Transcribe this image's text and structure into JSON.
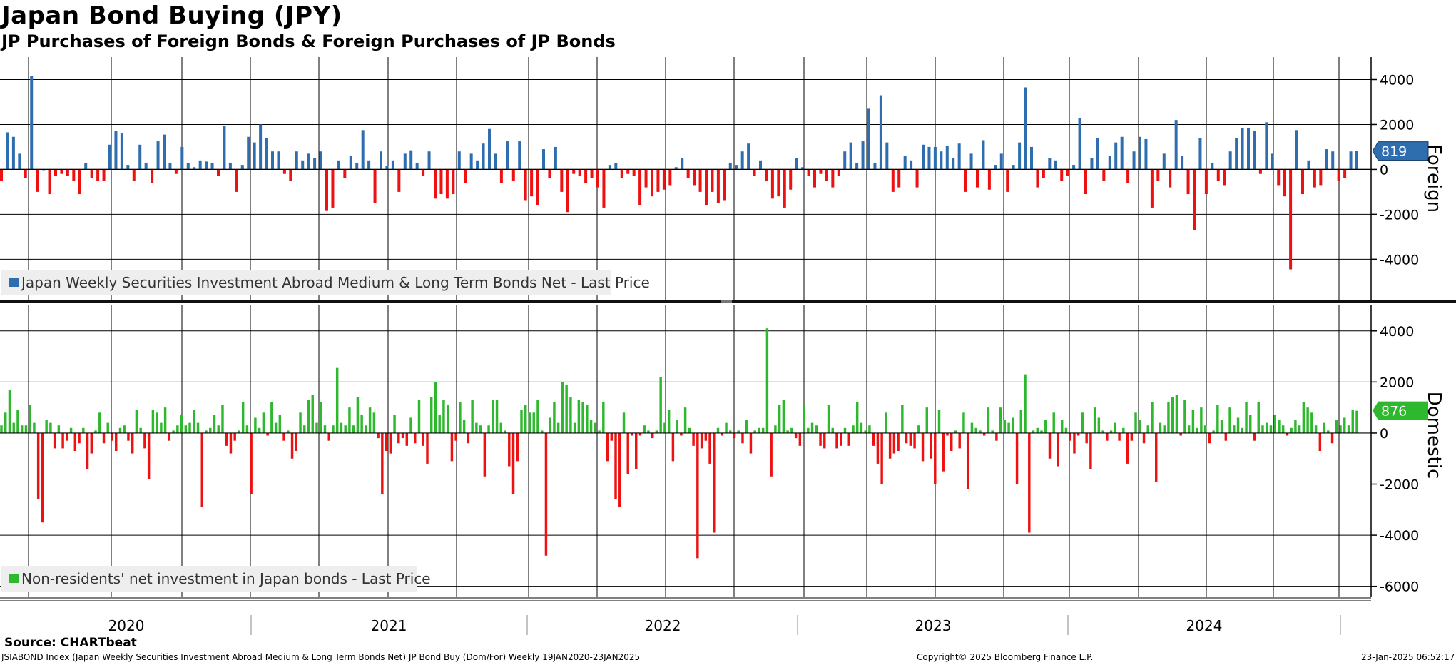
{
  "header": {
    "title": "Japan Bond Buying (JPY)",
    "subtitle": "JP Purchases of Foreign Bonds & Foreign Purchases of JP Bonds"
  },
  "footer": {
    "source": "Source: CHARTbeat",
    "description": "JSIABOND Index (Japan Weekly Securities Investment Abroad Medium & Long Term Bonds Net) JP Bond Buy (Dom/For)  Weekly 19JAN2020-23JAN2025",
    "copyright": "Copyright© 2025 Bloomberg Finance L.P.",
    "timestamp": "23-Jan-2025 06:52:17"
  },
  "colors": {
    "foreign_pos": "#2e6eae",
    "domestic_pos": "#2db82d",
    "negative": "#ee1111",
    "grid": "#000000",
    "legend_bg": "#eeeeee",
    "last_foreign_bg": "#2e6eae",
    "last_domestic_bg": "#2db82d"
  },
  "chart_data": [
    {
      "type": "bar",
      "panel_title": "Foreign",
      "legend": "Japan Weekly Securities Investment Abroad Medium & Long Term Bonds Net - Last Price",
      "last_value_label": "819",
      "ylim": [
        -5800,
        5000
      ],
      "yticks": [
        4000,
        2000,
        0,
        -2000,
        -4000
      ],
      "ytick_labels": [
        "4000",
        "2000",
        "0",
        "-2000",
        "-4000"
      ],
      "x_start": "19JAN2020",
      "x_end": "23JAN2025",
      "frequency": "weekly",
      "year_labels": [
        "2020",
        "2021",
        "2022",
        "2023",
        "2024"
      ],
      "grid": true,
      "values": [
        -500,
        1650,
        1450,
        700,
        -400,
        4150,
        -1000,
        0,
        -1100,
        -300,
        -200,
        -300,
        -500,
        -1100,
        300,
        -400,
        -500,
        -500,
        1100,
        1700,
        1600,
        200,
        -500,
        1100,
        300,
        -600,
        1250,
        1550,
        300,
        -200,
        1000,
        300,
        100,
        400,
        350,
        300,
        -300,
        1950,
        300,
        -1000,
        200,
        1450,
        1200,
        2000,
        1400,
        800,
        800,
        -200,
        -500,
        800,
        400,
        700,
        500,
        800,
        -1850,
        -1700,
        400,
        -400,
        600,
        300,
        1750,
        400,
        -1500,
        800,
        150,
        400,
        -1000,
        700,
        850,
        300,
        -300,
        800,
        -1300,
        -1100,
        -1300,
        -1100,
        800,
        -600,
        700,
        400,
        1150,
        1800,
        700,
        -600,
        1250,
        -500,
        1250,
        -1400,
        -1200,
        -1600,
        900,
        -400,
        1000,
        -1000,
        -1900,
        -200,
        -300,
        -600,
        -400,
        -800,
        -1700,
        200,
        300,
        -400,
        -200,
        -300,
        -1600,
        -800,
        -1200,
        -1000,
        -900,
        -700,
        100,
        500,
        -400,
        -700,
        -1000,
        -1600,
        -1000,
        -1500,
        -1400,
        300,
        200,
        800,
        1150,
        -300,
        400,
        -500,
        -1300,
        -1200,
        -1700,
        -900,
        500,
        100,
        -300,
        -800,
        -200,
        -500,
        -800,
        -300,
        800,
        1200,
        300,
        1250,
        2700,
        300,
        3300,
        1200,
        -1000,
        -800,
        600,
        400,
        -800,
        1100,
        1000,
        1000,
        800,
        1050,
        500,
        1150,
        -1000,
        700,
        -800,
        1300,
        -900,
        200,
        700,
        -1000,
        200,
        1200,
        3650,
        1000,
        -800,
        -400,
        500,
        400,
        -500,
        -300,
        200,
        2300,
        -1100,
        500,
        1400,
        -500,
        600,
        1200,
        1450,
        -600,
        800,
        1450,
        1350,
        -1700,
        -500,
        700,
        -800,
        2200,
        600,
        -1100,
        -2700,
        1400,
        -1100,
        300,
        -500,
        -700,
        800,
        1400,
        1850,
        1850,
        1700,
        -200,
        2100,
        700,
        -700,
        -1200,
        -4450,
        1750,
        -1100,
        400,
        -800,
        -700,
        900,
        800,
        -500,
        -400,
        800,
        819
      ]
    },
    {
      "type": "bar",
      "panel_title": "Domestic",
      "legend": "Non-residents' net investment in Japan bonds - Last Price",
      "last_value_label": "876",
      "ylim": [
        -6400,
        5000
      ],
      "yticks": [
        4000,
        2000,
        0,
        -2000,
        -4000,
        -6000
      ],
      "ytick_labels": [
        "4000",
        "2000",
        "0",
        "-2000",
        "-4000",
        "-6000"
      ],
      "x_start": "19JAN2020",
      "x_end": "23JAN2025",
      "frequency": "weekly",
      "year_labels": [
        "2020",
        "2021",
        "2022",
        "2023",
        "2024"
      ],
      "grid": true,
      "values": [
        300,
        800,
        1700,
        400,
        900,
        300,
        300,
        1100,
        400,
        -2600,
        -3500,
        500,
        400,
        -600,
        300,
        -600,
        -300,
        200,
        -700,
        -400,
        200,
        -1400,
        -800,
        100,
        800,
        -400,
        400,
        -300,
        -700,
        200,
        300,
        -300,
        -800,
        900,
        200,
        -600,
        -1800,
        900,
        800,
        400,
        1000,
        -300,
        100,
        300,
        700,
        300,
        400,
        900,
        400,
        -2900,
        100,
        200,
        700,
        300,
        1100,
        -500,
        -800,
        -300,
        100,
        1200,
        300,
        -2400,
        600,
        200,
        800,
        -100,
        1200,
        400,
        700,
        -300,
        100,
        -1000,
        -700,
        800,
        300,
        1300,
        1500,
        400,
        1200,
        300,
        -300,
        300,
        2550,
        400,
        300,
        1000,
        300,
        1400,
        700,
        300,
        1000,
        800,
        -200,
        -2400,
        -700,
        -800,
        700,
        -400,
        -200,
        -500,
        600,
        -400,
        1300,
        -500,
        -1200,
        1400,
        2000,
        700,
        1300,
        1100,
        -1100,
        -300,
        1200,
        500,
        -400,
        1300,
        400,
        300,
        -1700,
        300,
        1300,
        1300,
        400,
        100,
        -1300,
        -2400,
        -1100,
        900,
        1100,
        800,
        800,
        1300,
        100,
        -4800,
        600,
        1200,
        400,
        2000,
        1900,
        1400,
        400,
        1300,
        1200,
        1100,
        500,
        400,
        100,
        1200,
        -1100,
        -300,
        -2600,
        -2900,
        800,
        -1600,
        -100,
        -1400,
        -100,
        300,
        100,
        -200,
        100,
        2200,
        400,
        900,
        -1100,
        500,
        -100,
        1000,
        200,
        -500,
        -4900,
        -600,
        -300,
        -1200,
        -3900,
        200,
        -100,
        400,
        100,
        -200,
        100,
        -400,
        500,
        -800,
        100,
        200,
        200,
        4100,
        -1700,
        300,
        1100,
        1300,
        100,
        200,
        -200,
        -500,
        1100,
        200,
        400,
        300,
        -500,
        -600,
        1100,
        200,
        -600,
        -500,
        200,
        -500,
        300,
        1200,
        400,
        100,
        300,
        -500,
        -1200,
        -2000,
        800,
        -1000,
        -800,
        -700,
        1100,
        -400,
        -500,
        -600,
        300,
        -1100,
        1000,
        -1000,
        -2000,
        900,
        -1500,
        -100,
        -700,
        100,
        -600,
        800,
        -2200,
        400,
        200,
        100,
        -100,
        1000,
        100,
        -300,
        1000,
        500,
        400,
        600,
        -2000,
        900,
        2300,
        -3900,
        100,
        200,
        100,
        500,
        -1000,
        800,
        -1300,
        500,
        200,
        -300,
        -800,
        -100,
        800,
        -400,
        -1400,
        1000,
        600,
        100,
        -300,
        100,
        400,
        -300,
        200,
        -1200,
        -300,
        800,
        500,
        -400,
        300,
        1200,
        -1900,
        400,
        300,
        1200,
        1400,
        1500,
        -100,
        1300,
        300,
        900,
        200,
        1000,
        300,
        -400,
        100,
        1100,
        500,
        -300,
        1000,
        300,
        600,
        200,
        1200,
        700,
        -300,
        1200,
        300,
        400,
        300,
        700,
        500,
        300,
        -100,
        200,
        500,
        300,
        1200,
        1000,
        800,
        300,
        -700,
        400,
        100,
        -400,
        500,
        300,
        600,
        300,
        900,
        876
      ]
    }
  ]
}
